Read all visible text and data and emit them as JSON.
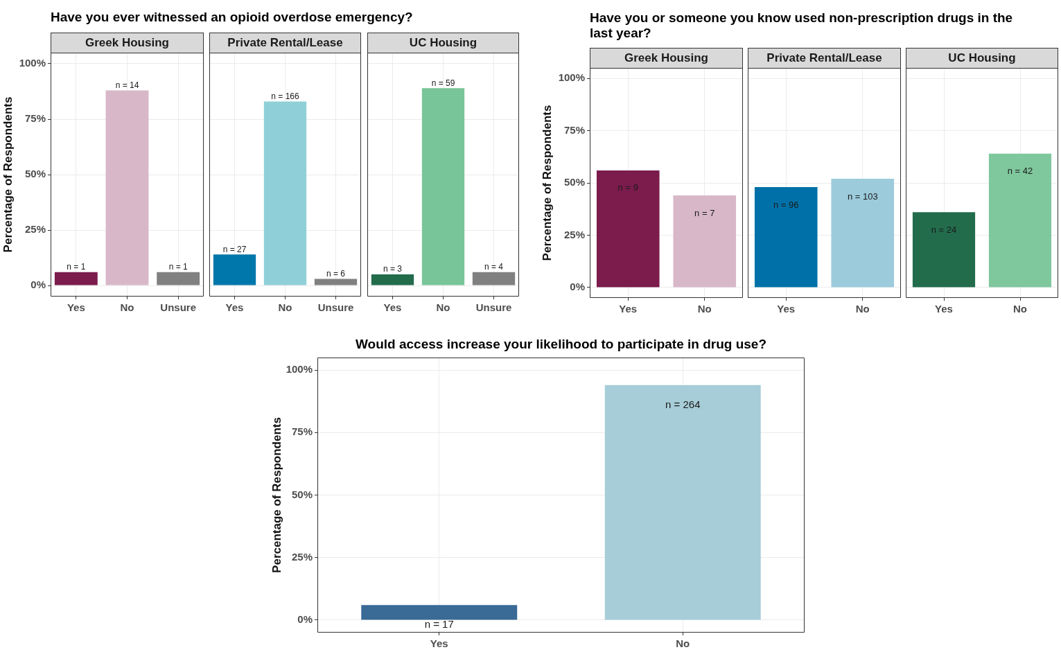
{
  "chart_data": [
    {
      "type": "bar",
      "title": "Have you ever witnessed an opioid overdose emergency?",
      "subtitle": "Greek Housing",
      "ylabel": "Percentage of Respondents",
      "categories": [
        "Yes",
        "No",
        "Unsure"
      ],
      "values": [
        6,
        88,
        6
      ],
      "colors": [
        "#7b1c4d",
        "#d8b8c8",
        "#808080"
      ],
      "annotations": [
        {
          "text": "n = 1",
          "x": "Yes",
          "y": 6
        },
        {
          "text": "n = 14",
          "x": "No",
          "y": 88
        },
        {
          "text": "n = 1",
          "x": "Unsure",
          "y": 6
        }
      ],
      "ylim": [
        -5,
        105
      ],
      "yticks": [
        {
          "value": 0,
          "label": "0%"
        },
        {
          "value": 25,
          "label": "25%"
        },
        {
          "value": 50,
          "label": "50%"
        },
        {
          "value": 75,
          "label": "75%"
        },
        {
          "value": 100,
          "label": "100%"
        }
      ],
      "grid": true
    },
    {
      "type": "bar",
      "subtitle": "Private Rental/Lease",
      "categories": [
        "Yes",
        "No",
        "Unsure"
      ],
      "values": [
        14,
        83,
        3
      ],
      "colors": [
        "#0077aa",
        "#8fd0d8",
        "#808080"
      ],
      "annotations": [
        {
          "text": "n = 27",
          "x": "Yes",
          "y": 14
        },
        {
          "text": "n = 166",
          "x": "No",
          "y": 83
        },
        {
          "text": "n = 6",
          "x": "Unsure",
          "y": 3
        }
      ],
      "ylim": [
        -5,
        105
      ],
      "yticks": [
        0,
        25,
        50,
        75,
        100
      ],
      "grid": true,
      "tick_labels": "x"
    },
    {
      "type": "bar",
      "subtitle": "UC Housing",
      "categories": [
        "Yes",
        "No",
        "Unsure"
      ],
      "values": [
        5,
        89,
        6
      ],
      "colors": [
        "#226c4c",
        "#79c59a",
        "#808080"
      ],
      "annotations": [
        {
          "text": "n = 3",
          "x": "Yes",
          "y": 5
        },
        {
          "text": "n = 59",
          "x": "No",
          "y": 89
        },
        {
          "text": "n = 4",
          "x": "Unsure",
          "y": 6
        }
      ],
      "ylim": [
        -5,
        105
      ],
      "yticks": [
        0,
        25,
        50,
        75,
        100
      ],
      "grid": true,
      "tick_labels": "x"
    },
    {
      "type": "bar",
      "title": "Have you or someone you know used non-prescription drugs in the last year?",
      "subtitle": "Greek Housing",
      "ylabel": "Percentage of Respondents",
      "categories": [
        "Yes",
        "No"
      ],
      "values": [
        56,
        44
      ],
      "colors": [
        "#7b1c4d",
        "#d8b8c8"
      ],
      "annotations": [
        {
          "text": "n = 9",
          "x": "Yes",
          "y": 56
        },
        {
          "text": "n = 7",
          "x": "No",
          "y": 44
        }
      ],
      "ylim": [
        -5,
        105
      ],
      "yticks": [
        {
          "value": 0,
          "label": "0%"
        },
        {
          "value": 25,
          "label": "25%"
        },
        {
          "value": 50,
          "label": "50%"
        },
        {
          "value": 75,
          "label": "75%"
        },
        {
          "value": 100,
          "label": "100%"
        }
      ],
      "grid": true
    },
    {
      "type": "bar",
      "subtitle": "Private Rental/Lease",
      "categories": [
        "Yes",
        "No"
      ],
      "values": [
        48,
        52
      ],
      "colors": [
        "#0071a8",
        "#9ccbdc"
      ],
      "annotations": [
        {
          "text": "n = 96",
          "x": "Yes",
          "y": 48
        },
        {
          "text": "n = 103",
          "x": "No",
          "y": 52
        }
      ],
      "ylim": [
        -5,
        105
      ],
      "yticks": [
        0,
        25,
        50,
        75,
        100
      ],
      "grid": true,
      "tick_labels": "x"
    },
    {
      "type": "bar",
      "subtitle": "UC Housing",
      "categories": [
        "Yes",
        "No"
      ],
      "values": [
        36,
        64
      ],
      "colors": [
        "#226c4c",
        "#7fc79d"
      ],
      "annotations": [
        {
          "text": "n = 24",
          "x": "Yes",
          "y": 36
        },
        {
          "text": "n = 42",
          "x": "No",
          "y": 64
        }
      ],
      "ylim": [
        -5,
        105
      ],
      "yticks": [
        0,
        25,
        50,
        75,
        100
      ],
      "grid": true,
      "tick_labels": "x"
    },
    {
      "type": "bar",
      "title": "Would access increase your likelihood to participate in drug use?",
      "ylabel": "Percentage of Respondents",
      "categories": [
        "Yes",
        "No"
      ],
      "values": [
        6,
        94
      ],
      "colors": [
        "#3a6a96",
        "#a6cdd8"
      ],
      "annotations": [
        {
          "text": "n = 17",
          "x": "Yes",
          "y": 6
        },
        {
          "text": "n = 264",
          "x": "No",
          "y": 94
        }
      ],
      "ylim": [
        -5,
        105
      ],
      "yticks": [
        {
          "value": 0,
          "label": "0%"
        },
        {
          "value": 25,
          "label": "25%"
        },
        {
          "value": 50,
          "label": "50%"
        },
        {
          "value": 75,
          "label": "75%"
        },
        {
          "value": 100,
          "label": "100%"
        }
      ],
      "grid": true
    }
  ]
}
